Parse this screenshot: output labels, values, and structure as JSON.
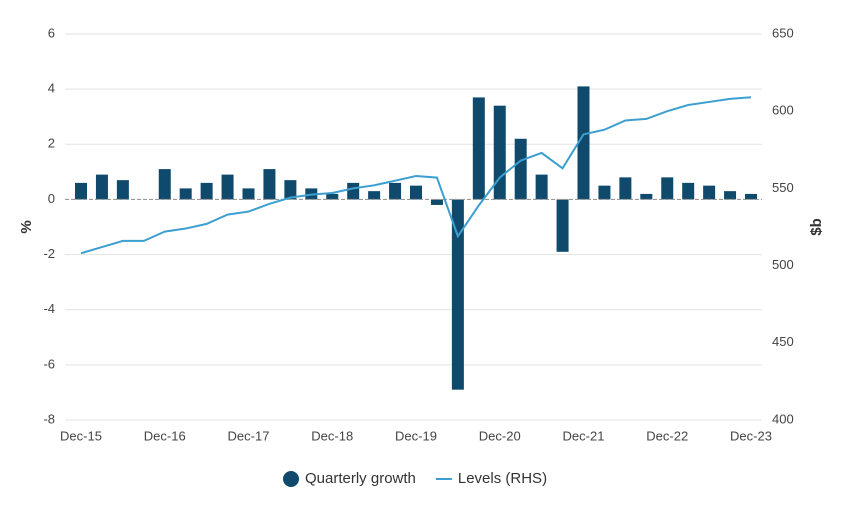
{
  "chart_data": {
    "type": "bar",
    "categories": [
      "Dec-15",
      null,
      null,
      null,
      "Dec-16",
      null,
      null,
      null,
      "Dec-17",
      null,
      null,
      null,
      "Dec-18",
      null,
      null,
      null,
      "Dec-19",
      null,
      null,
      null,
      "Dec-20",
      null,
      null,
      null,
      "Dec-21",
      null,
      null,
      null,
      "Dec-22",
      null,
      null,
      null,
      "Dec-23"
    ],
    "y_label": "%",
    "y2_label": "$b",
    "ylim": [
      -8,
      6
    ],
    "yticks": [
      -8,
      -6,
      -4,
      -2,
      0,
      2,
      4,
      6
    ],
    "y2lim": [
      400,
      650
    ],
    "y2ticks": [
      400,
      450,
      500,
      550,
      600,
      650
    ],
    "grid": true,
    "legend": "bottom",
    "series": [
      {
        "name": "Quarterly growth",
        "type": "bar",
        "color": "#0f4a6c",
        "values": [
          0.6,
          0.9,
          0.7,
          0.0,
          1.1,
          0.4,
          0.6,
          0.9,
          0.4,
          1.1,
          0.7,
          0.4,
          0.2,
          0.6,
          0.3,
          0.6,
          0.5,
          -0.2,
          -6.9,
          3.7,
          3.4,
          2.2,
          0.9,
          -1.9,
          4.1,
          0.5,
          0.8,
          0.2,
          0.8,
          0.6,
          0.5,
          0.3,
          0.2
        ]
      },
      {
        "name": "Levels (RHS)",
        "type": "line",
        "axis": "y2",
        "color": "#3d9fd0",
        "values": [
          508,
          512,
          516,
          516,
          522,
          524,
          527,
          533,
          535,
          540,
          544,
          546,
          547,
          550,
          552,
          555,
          558,
          557,
          519,
          539,
          557,
          568,
          573,
          563,
          585,
          588,
          594,
          595,
          600,
          604,
          606,
          608,
          609
        ]
      }
    ]
  }
}
